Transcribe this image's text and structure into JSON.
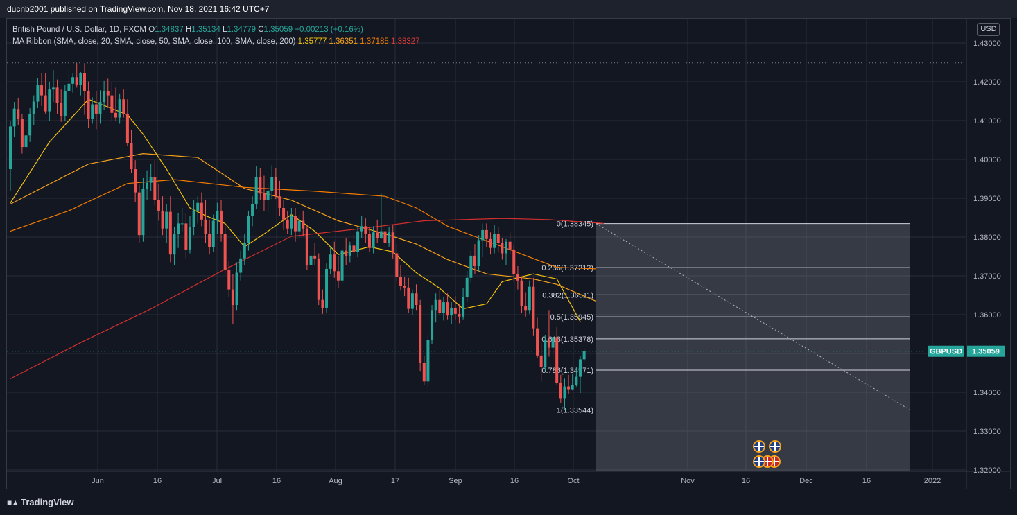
{
  "header": {
    "published": "ducnb2001 published on TradingView.com, Nov 18, 2021 16:42 UTC+7"
  },
  "legend": {
    "symbol": "British Pound / U.S. Dollar, 1D, FXCM",
    "o_label": "O",
    "o": "1.34837",
    "h_label": "H",
    "h": "1.35134",
    "l_label": "L",
    "l": "1.34779",
    "c_label": "C",
    "c": "1.35059",
    "change": "+0.00213 (+0.16%)",
    "ma_label": "MA Ribbon (SMA, close, 20, SMA, close, 50, SMA, close, 100, SMA, close, 200)",
    "ma_values": [
      {
        "value": "1.35777",
        "color": "#f4c20d"
      },
      {
        "value": "1.36351",
        "color": "#f7a21b"
      },
      {
        "value": "1.37185",
        "color": "#f57c00"
      },
      {
        "value": "1.38327",
        "color": "#d32f2f"
      }
    ]
  },
  "currency": "USD",
  "footer": {
    "brand": "TradingView"
  },
  "colors": {
    "up": "#26a69a",
    "down": "#ef5350",
    "bg": "#131722",
    "grid": "#2a2e39",
    "text": "#d1d4dc"
  },
  "chart_data": {
    "type": "candlestick",
    "symbol": "GBPUSD",
    "last_price": "1.35059",
    "ylim": [
      1.32,
      1.43
    ],
    "y_ticks": [
      "1.43000",
      "1.42000",
      "1.41000",
      "1.40000",
      "1.39000",
      "1.38000",
      "1.37000",
      "1.36000",
      "1.35000",
      "1.34000",
      "1.33000",
      "1.32000"
    ],
    "x_ticks": [
      "Jun",
      "16",
      "Jul",
      "16",
      "Aug",
      "17",
      "Sep",
      "16",
      "Oct",
      "Nov",
      "16",
      "Dec",
      "16",
      "2022"
    ],
    "dotted_levels": [
      1.42487,
      1.35059,
      1.33544
    ],
    "candles": [
      [
        1.3975,
        1.4098,
        1.392,
        1.4085
      ],
      [
        1.4085,
        1.4148,
        1.4058,
        1.4131
      ],
      [
        1.413,
        1.4158,
        1.4088,
        1.4105
      ],
      [
        1.4105,
        1.4118,
        1.4015,
        1.4032
      ],
      [
        1.4032,
        1.4079,
        1.4005,
        1.4062
      ],
      [
        1.4062,
        1.4132,
        1.4045,
        1.4118
      ],
      [
        1.4118,
        1.4165,
        1.4088,
        1.4149
      ],
      [
        1.4149,
        1.421,
        1.4132,
        1.4191
      ],
      [
        1.4191,
        1.4222,
        1.4138,
        1.4165
      ],
      [
        1.4165,
        1.4222,
        1.4118,
        1.4124
      ],
      [
        1.4124,
        1.4199,
        1.41,
        1.418
      ],
      [
        1.418,
        1.423,
        1.4148,
        1.4185
      ],
      [
        1.4185,
        1.4206,
        1.4118,
        1.4145
      ],
      [
        1.4145,
        1.418,
        1.4097,
        1.4112
      ],
      [
        1.4112,
        1.4192,
        1.4098,
        1.4175
      ],
      [
        1.4175,
        1.4234,
        1.4155,
        1.4195
      ],
      [
        1.4195,
        1.4221,
        1.4172,
        1.4212
      ],
      [
        1.4212,
        1.4248,
        1.4185,
        1.4192
      ],
      [
        1.4192,
        1.4225,
        1.4165,
        1.4222
      ],
      [
        1.4222,
        1.4248,
        1.4115,
        1.4175
      ],
      [
        1.4175,
        1.4201,
        1.4082,
        1.4105
      ],
      [
        1.4105,
        1.416,
        1.4092,
        1.4142
      ],
      [
        1.4142,
        1.4175,
        1.4078,
        1.4118
      ],
      [
        1.4118,
        1.4178,
        1.4092,
        1.4148
      ],
      [
        1.4148,
        1.4202,
        1.4128,
        1.4175
      ],
      [
        1.4175,
        1.4208,
        1.4132,
        1.4165
      ],
      [
        1.4165,
        1.4198,
        1.4098,
        1.412
      ],
      [
        1.412,
        1.4185,
        1.4098,
        1.4108
      ],
      [
        1.4108,
        1.417,
        1.4092,
        1.4155
      ],
      [
        1.4155,
        1.418,
        1.4108,
        1.4118
      ],
      [
        1.4118,
        1.4155,
        1.4035,
        1.4042
      ],
      [
        1.4042,
        1.4075,
        1.3965,
        1.3975
      ],
      [
        1.3975,
        1.3998,
        1.389,
        1.3915
      ],
      [
        1.3915,
        1.3935,
        1.3785,
        1.3805
      ],
      [
        1.3805,
        1.3952,
        1.3788,
        1.3925
      ],
      [
        1.3925,
        1.3972,
        1.3895,
        1.394
      ],
      [
        1.394,
        1.3988,
        1.3918,
        1.3955
      ],
      [
        1.3955,
        1.3998,
        1.3882,
        1.3895
      ],
      [
        1.3895,
        1.3938,
        1.3842,
        1.3868
      ],
      [
        1.3868,
        1.3905,
        1.3805,
        1.3822
      ],
      [
        1.3822,
        1.3885,
        1.3785,
        1.3865
      ],
      [
        1.3865,
        1.3905,
        1.3735,
        1.3755
      ],
      [
        1.3755,
        1.3825,
        1.3728,
        1.3808
      ],
      [
        1.3808,
        1.3862,
        1.3772,
        1.3835
      ],
      [
        1.3835,
        1.3875,
        1.3815,
        1.3835
      ],
      [
        1.3835,
        1.3862,
        1.3745,
        1.3768
      ],
      [
        1.3768,
        1.3855,
        1.3758,
        1.3825
      ],
      [
        1.3825,
        1.3895,
        1.3805,
        1.3868
      ],
      [
        1.3868,
        1.3905,
        1.3835,
        1.3888
      ],
      [
        1.3888,
        1.3915,
        1.3828,
        1.3845
      ],
      [
        1.3845,
        1.3895,
        1.3785,
        1.3808
      ],
      [
        1.3808,
        1.3845,
        1.3755,
        1.3775
      ],
      [
        1.3775,
        1.3858,
        1.3762,
        1.3842
      ],
      [
        1.3842,
        1.3888,
        1.3808,
        1.3868
      ],
      [
        1.3868,
        1.3895,
        1.3788,
        1.3808
      ],
      [
        1.3808,
        1.3835,
        1.3705,
        1.3715
      ],
      [
        1.3715,
        1.3738,
        1.3645,
        1.3665
      ],
      [
        1.3665,
        1.3705,
        1.3575,
        1.3625
      ],
      [
        1.3625,
        1.3735,
        1.3612,
        1.3708
      ],
      [
        1.3708,
        1.3765,
        1.3688,
        1.3745
      ],
      [
        1.3745,
        1.3808,
        1.3728,
        1.3785
      ],
      [
        1.3785,
        1.3868,
        1.3765,
        1.3855
      ],
      [
        1.3855,
        1.3905,
        1.3828,
        1.3885
      ],
      [
        1.3885,
        1.3982,
        1.3872,
        1.3955
      ],
      [
        1.3955,
        1.3978,
        1.3895,
        1.3912
      ],
      [
        1.3912,
        1.3958,
        1.3868,
        1.3895
      ],
      [
        1.3895,
        1.3938,
        1.3862,
        1.3918
      ],
      [
        1.3918,
        1.3985,
        1.3898,
        1.3955
      ],
      [
        1.3955,
        1.3978,
        1.3898,
        1.3905
      ],
      [
        1.3905,
        1.3945,
        1.3855,
        1.3875
      ],
      [
        1.3875,
        1.3895,
        1.3818,
        1.3845
      ],
      [
        1.3845,
        1.3868,
        1.3808,
        1.3822
      ],
      [
        1.3822,
        1.3875,
        1.3805,
        1.3855
      ],
      [
        1.3855,
        1.3875,
        1.3788,
        1.3815
      ],
      [
        1.3815,
        1.3858,
        1.3798,
        1.3842
      ],
      [
        1.3842,
        1.3868,
        1.3802,
        1.3822
      ],
      [
        1.3822,
        1.3832,
        1.3715,
        1.3728
      ],
      [
        1.3728,
        1.3768,
        1.3718,
        1.3752
      ],
      [
        1.3752,
        1.3785,
        1.3728,
        1.3745
      ],
      [
        1.3745,
        1.3758,
        1.3625,
        1.3638
      ],
      [
        1.3638,
        1.3665,
        1.3602,
        1.3618
      ],
      [
        1.3618,
        1.3732,
        1.3605,
        1.3718
      ],
      [
        1.3718,
        1.3775,
        1.3705,
        1.3755
      ],
      [
        1.3755,
        1.3788,
        1.3695,
        1.3712
      ],
      [
        1.3712,
        1.3752,
        1.3668,
        1.3688
      ],
      [
        1.3688,
        1.3775,
        1.3678,
        1.3765
      ],
      [
        1.3765,
        1.3798,
        1.3728,
        1.3752
      ],
      [
        1.3752,
        1.3788,
        1.3735,
        1.3778
      ],
      [
        1.3778,
        1.3808,
        1.3745,
        1.3762
      ],
      [
        1.3762,
        1.3825,
        1.3748,
        1.3815
      ],
      [
        1.3815,
        1.3855,
        1.3798,
        1.3828
      ],
      [
        1.3828,
        1.3848,
        1.3785,
        1.3808
      ],
      [
        1.3808,
        1.3825,
        1.3762,
        1.3772
      ],
      [
        1.3772,
        1.3828,
        1.3758,
        1.3812
      ],
      [
        1.3812,
        1.3845,
        1.3785,
        1.3798
      ],
      [
        1.3798,
        1.3912,
        1.3795,
        1.3815
      ],
      [
        1.3815,
        1.3835,
        1.3768,
        1.3785
      ],
      [
        1.3785,
        1.3825,
        1.3775,
        1.3812
      ],
      [
        1.3812,
        1.3832,
        1.3745,
        1.3758
      ],
      [
        1.3758,
        1.3782,
        1.3685,
        1.3698
      ],
      [
        1.3698,
        1.3728,
        1.3662,
        1.3675
      ],
      [
        1.3675,
        1.3698,
        1.3648,
        1.367
      ],
      [
        1.367,
        1.3695,
        1.3605,
        1.3615
      ],
      [
        1.3615,
        1.3665,
        1.3598,
        1.3655
      ],
      [
        1.3655,
        1.3678,
        1.3612,
        1.3625
      ],
      [
        1.3625,
        1.3638,
        1.3455,
        1.3475
      ],
      [
        1.3475,
        1.3495,
        1.3418,
        1.3428
      ],
      [
        1.3428,
        1.3548,
        1.3415,
        1.3535
      ],
      [
        1.3535,
        1.3625,
        1.3525,
        1.3612
      ],
      [
        1.3612,
        1.3655,
        1.358,
        1.3638
      ],
      [
        1.3638,
        1.3665,
        1.3598,
        1.3605
      ],
      [
        1.3605,
        1.3645,
        1.3585,
        1.3632
      ],
      [
        1.3632,
        1.3655,
        1.3588,
        1.3598
      ],
      [
        1.3598,
        1.3632,
        1.3575,
        1.3618
      ],
      [
        1.3618,
        1.3648,
        1.3588,
        1.3602
      ],
      [
        1.3602,
        1.3628,
        1.3578,
        1.3595
      ],
      [
        1.3595,
        1.3668,
        1.3588,
        1.3645
      ],
      [
        1.3645,
        1.3712,
        1.3632,
        1.3695
      ],
      [
        1.3695,
        1.3765,
        1.3682,
        1.3752
      ],
      [
        1.3752,
        1.3782,
        1.3705,
        1.3725
      ],
      [
        1.3725,
        1.3805,
        1.3712,
        1.3792
      ],
      [
        1.3792,
        1.3835,
        1.3748,
        1.3818
      ],
      [
        1.3818,
        1.3835,
        1.3775,
        1.3795
      ],
      [
        1.3795,
        1.3812,
        1.3755,
        1.3772
      ],
      [
        1.3772,
        1.3832,
        1.3758,
        1.3808
      ],
      [
        1.3808,
        1.3825,
        1.3762,
        1.3785
      ],
      [
        1.3785,
        1.3798,
        1.3742,
        1.3758
      ],
      [
        1.3758,
        1.3795,
        1.3728,
        1.3788
      ],
      [
        1.3788,
        1.3812,
        1.3755,
        1.3768
      ],
      [
        1.3768,
        1.3778,
        1.3685,
        1.3705
      ],
      [
        1.3705,
        1.3725,
        1.3665,
        1.3688
      ],
      [
        1.3688,
        1.3698,
        1.3605,
        1.3622
      ],
      [
        1.3622,
        1.3658,
        1.3595,
        1.3612
      ],
      [
        1.3612,
        1.3688,
        1.3602,
        1.3672
      ],
      [
        1.3672,
        1.3695,
        1.3545,
        1.3565
      ],
      [
        1.3565,
        1.3592,
        1.3488,
        1.3495
      ],
      [
        1.3495,
        1.3528,
        1.3428,
        1.3465
      ],
      [
        1.3465,
        1.3548,
        1.3455,
        1.3535
      ],
      [
        1.3535,
        1.3612,
        1.3492,
        1.3515
      ],
      [
        1.3515,
        1.3555,
        1.3485,
        1.3542
      ],
      [
        1.3542,
        1.3568,
        1.3418,
        1.3425
      ],
      [
        1.3425,
        1.3445,
        1.3372,
        1.3385
      ],
      [
        1.3385,
        1.3435,
        1.3354,
        1.3415
      ],
      [
        1.3415,
        1.3445,
        1.3395,
        1.3408
      ],
      [
        1.3408,
        1.3448,
        1.3405,
        1.3418
      ],
      [
        1.3418,
        1.3465,
        1.3415,
        1.344
      ],
      [
        1.344,
        1.3495,
        1.3398,
        1.3485
      ],
      [
        1.3485,
        1.3513,
        1.3478,
        1.3506
      ]
    ],
    "ma_lines": [
      {
        "period": 20,
        "color": "#f4c20d",
        "points": [
          [
            0,
            1.3888
          ],
          [
            10,
            1.4045
          ],
          [
            20,
            1.4155
          ],
          [
            30,
            1.4115
          ],
          [
            34,
            1.4065
          ],
          [
            40,
            1.3975
          ],
          [
            46,
            1.3875
          ],
          [
            50,
            1.3855
          ],
          [
            55,
            1.3835
          ],
          [
            60,
            1.3775
          ],
          [
            65,
            1.3808
          ],
          [
            72,
            1.3858
          ],
          [
            78,
            1.3815
          ],
          [
            84,
            1.3755
          ],
          [
            92,
            1.3775
          ],
          [
            98,
            1.3762
          ],
          [
            104,
            1.3708
          ],
          [
            110,
            1.3668
          ],
          [
            116,
            1.3615
          ],
          [
            122,
            1.3628
          ],
          [
            126,
            1.3685
          ],
          [
            134,
            1.3705
          ],
          [
            140,
            1.3692
          ],
          [
            146,
            1.3582
          ]
        ]
      },
      {
        "period": 50,
        "color": "#f7a21b",
        "points": [
          [
            0,
            1.3885
          ],
          [
            20,
            1.3988
          ],
          [
            34,
            1.4015
          ],
          [
            48,
            1.4005
          ],
          [
            60,
            1.3925
          ],
          [
            72,
            1.3895
          ],
          [
            84,
            1.3842
          ],
          [
            96,
            1.3808
          ],
          [
            104,
            1.3782
          ],
          [
            112,
            1.3742
          ],
          [
            122,
            1.3705
          ],
          [
            134,
            1.3692
          ],
          [
            140,
            1.3678
          ],
          [
            150,
            1.3635
          ]
        ]
      },
      {
        "period": 100,
        "color": "#f57c00",
        "points": [
          [
            0,
            1.3815
          ],
          [
            15,
            1.3868
          ],
          [
            30,
            1.3938
          ],
          [
            42,
            1.3948
          ],
          [
            60,
            1.3928
          ],
          [
            78,
            1.3918
          ],
          [
            96,
            1.3905
          ],
          [
            104,
            1.3875
          ],
          [
            112,
            1.3828
          ],
          [
            126,
            1.3775
          ],
          [
            140,
            1.3722
          ],
          [
            150,
            1.3718
          ]
        ]
      },
      {
        "period": 200,
        "color": "#d32f2f",
        "points": [
          [
            0,
            1.3435
          ],
          [
            18,
            1.3528
          ],
          [
            36,
            1.3615
          ],
          [
            54,
            1.3712
          ],
          [
            72,
            1.3802
          ],
          [
            90,
            1.3822
          ],
          [
            106,
            1.3842
          ],
          [
            126,
            1.3848
          ],
          [
            138,
            1.3845
          ],
          [
            152,
            1.3835
          ]
        ]
      }
    ],
    "fibonacci": {
      "x_start": 1.5,
      "x_end": 1.5,
      "levels": [
        {
          "label": "0(1.38345)",
          "value": 1.38345
        },
        {
          "label": "0.236(1.37212)",
          "value": 1.37212
        },
        {
          "label": "0.382(1.36511)",
          "value": 1.36511
        },
        {
          "label": "0.5(1.35945)",
          "value": 1.35945
        },
        {
          "label": "0.618(1.35378)",
          "value": 1.35378
        },
        {
          "label": "0.786(1.34571)",
          "value": 1.34571
        },
        {
          "label": "1(1.33544)",
          "value": 1.33544
        }
      ]
    },
    "trendline": {
      "from": [
        1.38345,
        0
      ],
      "to": [
        1.33544,
        1
      ]
    }
  }
}
